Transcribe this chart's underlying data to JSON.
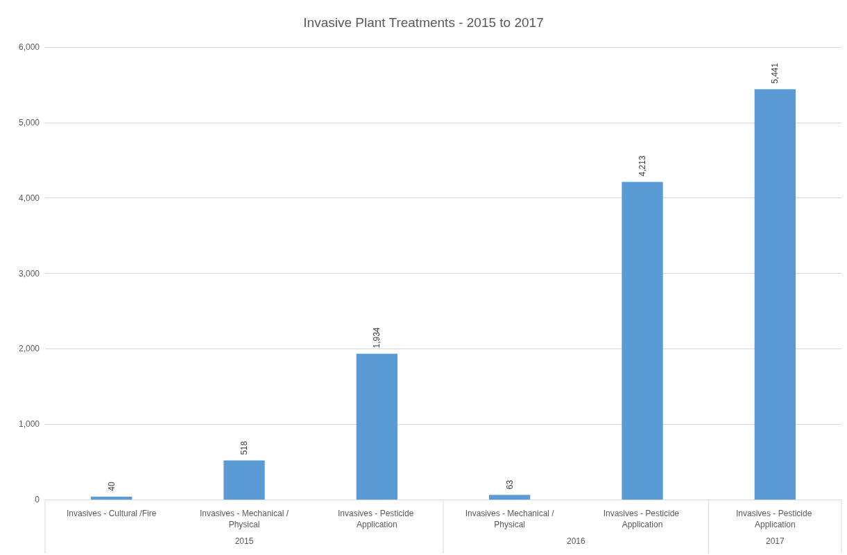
{
  "chart_data": {
    "type": "bar",
    "title": "Invasive Plant Treatments - 2015 to 2017",
    "categories": [
      "Invasives - Cultural /Fire",
      "Invasives - Mechanical /Physical",
      "Invasives - Pesticide Application",
      "Invasives - Mechanical /Physical",
      "Invasives - Pesticide Application",
      "Invasives - Pesticide Application"
    ],
    "values": [
      40,
      518,
      1934,
      63,
      4213,
      5441
    ],
    "value_labels": [
      "40",
      "518",
      "1,934",
      "63",
      "4,213",
      "5,441"
    ],
    "color": "#5b9bd5",
    "ylim": [
      0,
      6000
    ],
    "yticks": [
      {
        "value": 0,
        "label": "0"
      },
      {
        "value": 1000,
        "label": "1,000"
      },
      {
        "value": 2000,
        "label": "2,000"
      },
      {
        "value": 3000,
        "label": "3,000"
      },
      {
        "value": 4000,
        "label": "4,000"
      },
      {
        "value": 5000,
        "label": "5,000"
      },
      {
        "value": 6000,
        "label": "6,000"
      }
    ],
    "grid": "y",
    "annotations": [
      "2015",
      "2016",
      "2017"
    ]
  }
}
